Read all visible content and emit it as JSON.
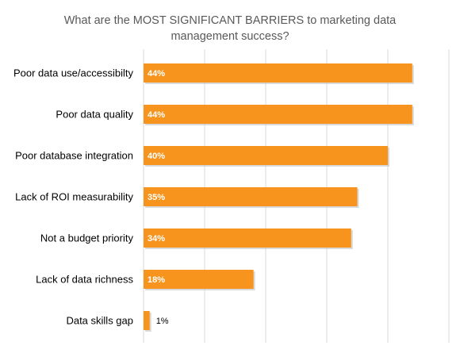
{
  "chart_data": {
    "type": "bar",
    "orientation": "horizontal",
    "title": "What are the MOST SIGNIFICANT  BARRIERS to marketing data management success?",
    "categories": [
      "Poor data use/accessibilty",
      "Poor data quality",
      "Poor database integration",
      "Lack of ROI measurability",
      "Not a budget priority",
      "Lack of data richness",
      "Data skills gap"
    ],
    "values": [
      44,
      44,
      40,
      35,
      34,
      18,
      1
    ],
    "value_labels": [
      "44%",
      "44%",
      "40%",
      "35%",
      "34%",
      "18%",
      "1%"
    ],
    "xlim": [
      0,
      50
    ],
    "grid": true,
    "bar_color": "#F7941D",
    "grid_color": "#d9d9d9"
  }
}
